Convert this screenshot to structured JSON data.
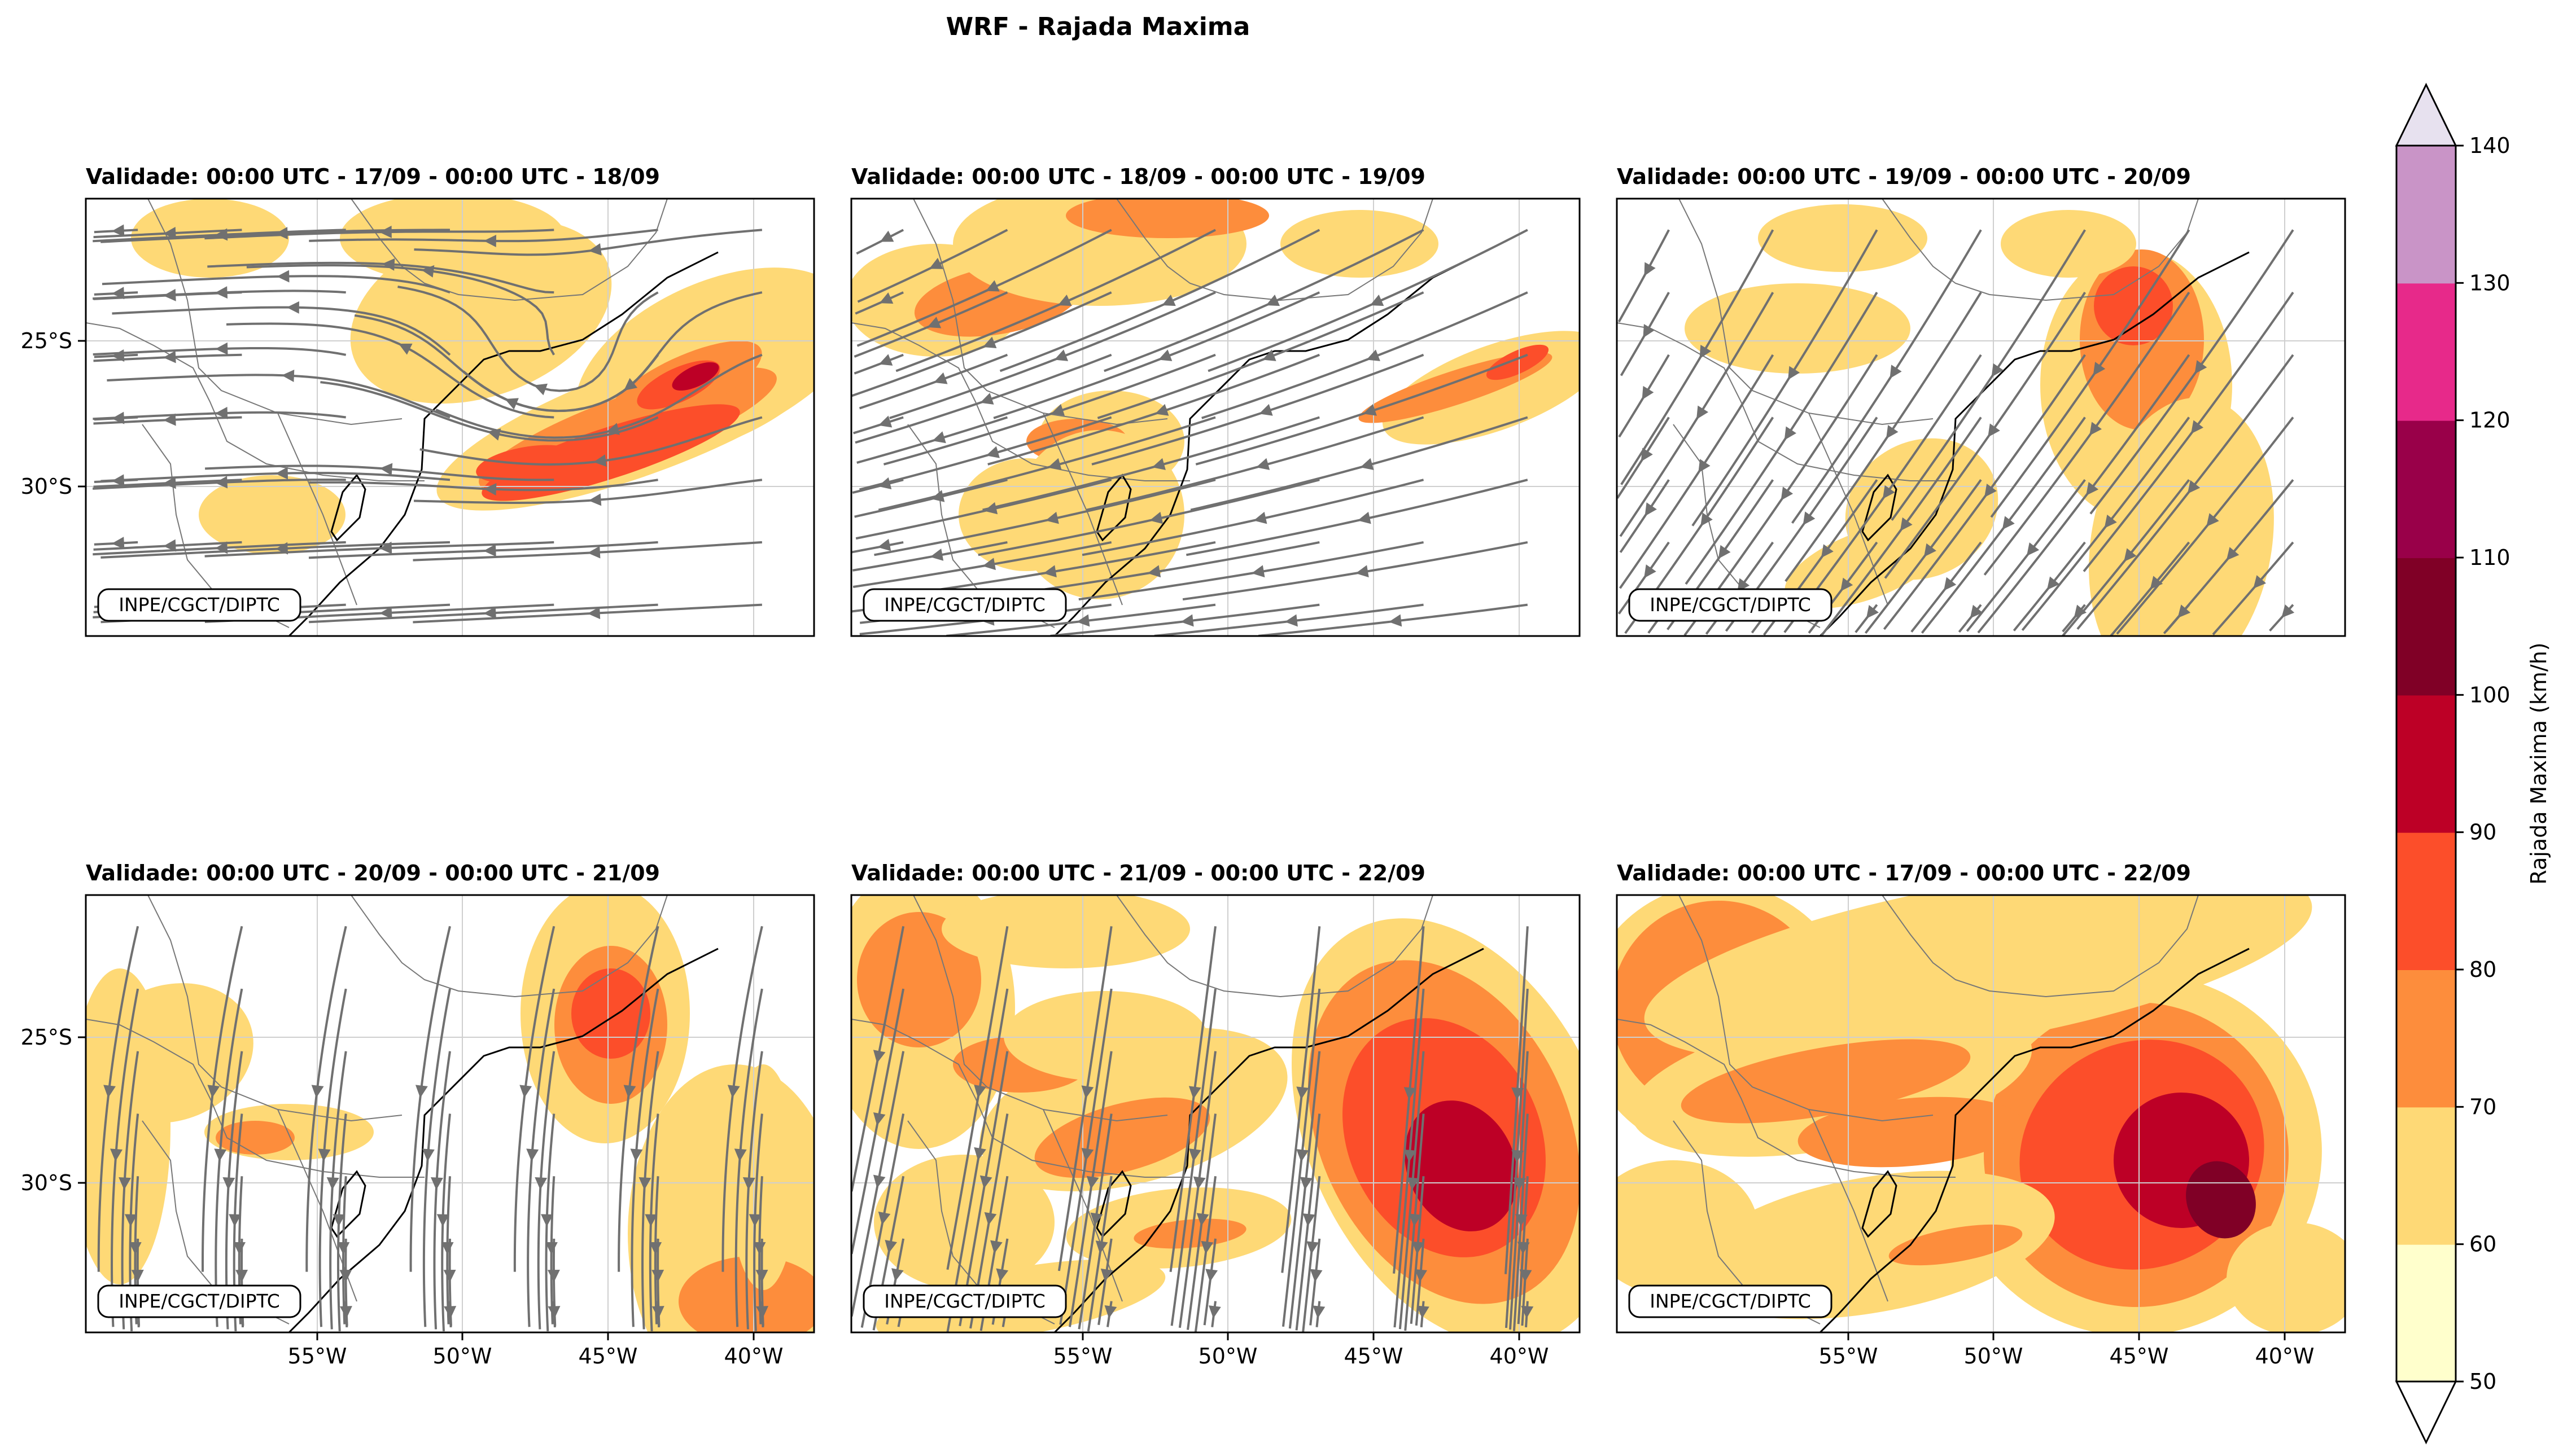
{
  "figure": {
    "title": "WRF - Rajada Maxima",
    "watermark": "INPE/CGCT/DIPTC"
  },
  "chart_data": {
    "type": "filled-contour-map",
    "variable": "Rajada Maxima",
    "units": "km/h",
    "axes": {
      "x_ticks": [
        "55°W",
        "50°W",
        "45°W",
        "40°W"
      ],
      "y_ticks": [
        "25°S",
        "30°S"
      ]
    },
    "colorbar": {
      "label": "Rajada Maxima (km/h)",
      "levels": [
        50,
        60,
        70,
        80,
        90,
        100,
        110,
        120,
        130,
        140
      ],
      "colors": [
        "#ffffcc",
        "#fed976",
        "#fd8d3c",
        "#fc4e2a",
        "#bd0026",
        "#800026",
        "#990049",
        "#e7298a",
        "#c994c7",
        "#e7e1ef"
      ],
      "under_color": "#ffffff",
      "over_color": "#e7e1ef",
      "extend": "both"
    },
    "panels": [
      {
        "title": "Validade: 00:00 UTC - 17/09 - 00:00 UTC - 18/09"
      },
      {
        "title": "Validade: 00:00 UTC - 18/09 - 00:00 UTC - 19/09"
      },
      {
        "title": "Validade: 00:00 UTC - 19/09 - 00:00 UTC - 20/09"
      },
      {
        "title": "Validade: 00:00 UTC - 20/09 - 00:00 UTC - 21/09"
      },
      {
        "title": "Validade: 00:00 UTC - 21/09 - 00:00 UTC - 22/09"
      },
      {
        "title": "Validade: 00:00 UTC - 17/09 - 00:00 UTC - 22/09"
      }
    ]
  }
}
